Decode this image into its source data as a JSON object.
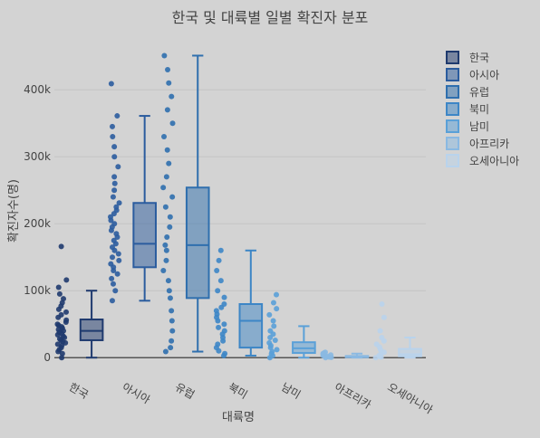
{
  "chart_data": {
    "type": "box",
    "title": "한국 및 대륙별 일별 확진자 분포",
    "xlabel": "대륙명",
    "ylabel": "확진자수(명)",
    "ylim": [
      -20000,
      480000
    ],
    "yticks": [
      0,
      100000,
      200000,
      300000,
      400000
    ],
    "ytick_labels": [
      "0",
      "100k",
      "200k",
      "300k",
      "400k"
    ],
    "grid": true,
    "legend_position": "top-right",
    "boxpoints": "all",
    "categories": [
      "한국",
      "아시아",
      "유럽",
      "북미",
      "남미",
      "아프리카",
      "오세아니아"
    ],
    "series": [
      {
        "name": "한국",
        "color": "#1f3a6e",
        "min": 0,
        "q1": 26000,
        "median": 40000,
        "q3": 57000,
        "max": 100000,
        "points": [
          0,
          6000,
          9000,
          12000,
          15000,
          18000,
          20000,
          22000,
          24000,
          26000,
          28000,
          30000,
          32000,
          34000,
          36000,
          38000,
          40000,
          42000,
          44000,
          46000,
          48000,
          50000,
          53000,
          56000,
          60000,
          64000,
          68000,
          72000,
          77000,
          82000,
          88000,
          95000,
          105000,
          116000,
          166000
        ]
      },
      {
        "name": "아시아",
        "color": "#2b5c9e",
        "min": 85000,
        "q1": 135000,
        "median": 170000,
        "q3": 231000,
        "max": 361000,
        "points": [
          85000,
          100000,
          110000,
          118000,
          125000,
          130000,
          135000,
          140000,
          145000,
          150000,
          155000,
          160000,
          165000,
          170000,
          175000,
          180000,
          185000,
          190000,
          195000,
          200000,
          205000,
          210000,
          215000,
          220000,
          225000,
          231000,
          240000,
          250000,
          260000,
          270000,
          285000,
          300000,
          315000,
          330000,
          345000,
          361000,
          409000
        ]
      },
      {
        "name": "유럽",
        "color": "#2f6fae",
        "min": 9000,
        "q1": 89000,
        "median": 168000,
        "q3": 254000,
        "max": 451000,
        "points": [
          9000,
          15000,
          25000,
          40000,
          55000,
          70000,
          89000,
          100000,
          115000,
          130000,
          145000,
          160000,
          168000,
          180000,
          195000,
          210000,
          225000,
          240000,
          254000,
          270000,
          290000,
          310000,
          330000,
          350000,
          370000,
          390000,
          410000,
          430000,
          451000
        ]
      },
      {
        "name": "북미",
        "color": "#3d86c6",
        "min": 3000,
        "q1": 15000,
        "median": 55000,
        "q3": 80000,
        "max": 160000,
        "points": [
          3000,
          6000,
          10000,
          15000,
          20000,
          25000,
          30000,
          35000,
          40000,
          45000,
          50000,
          55000,
          60000,
          65000,
          70000,
          75000,
          80000,
          90000,
          100000,
          115000,
          130000,
          145000,
          160000
        ]
      },
      {
        "name": "남미",
        "color": "#5aa0d8",
        "min": 0,
        "q1": 7000,
        "median": 14000,
        "q3": 23000,
        "max": 47000,
        "points": [
          0,
          3000,
          6000,
          9000,
          12000,
          15000,
          18000,
          22000,
          26000,
          30000,
          35000,
          40000,
          47000,
          55000,
          64000,
          73000,
          82000,
          94000
        ]
      },
      {
        "name": "아프리카",
        "color": "#8ab9e2",
        "min": 0,
        "q1": 500,
        "median": 1500,
        "q3": 2500,
        "max": 6000,
        "points": [
          0,
          500,
          1000,
          1500,
          2000,
          2500,
          3000,
          4000,
          5000,
          6000,
          7000,
          8000
        ]
      },
      {
        "name": "오세아니아",
        "color": "#b9d3ec",
        "min": 0,
        "q1": 2000,
        "median": 5000,
        "q3": 13000,
        "max": 30000,
        "points": [
          0,
          1000,
          2000,
          3000,
          5000,
          8000,
          12000,
          16000,
          20000,
          25000,
          30000,
          40000,
          60000,
          80000
        ]
      }
    ]
  }
}
